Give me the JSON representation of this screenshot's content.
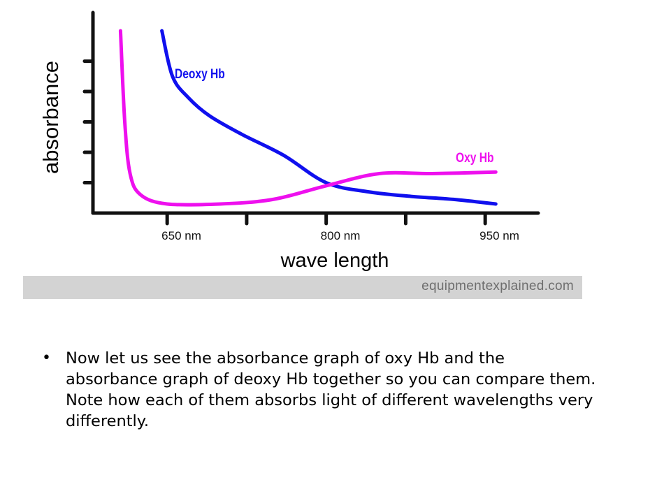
{
  "chart_data": {
    "type": "line",
    "xlabel": "wave length",
    "ylabel": "absorbance",
    "x_ticks": [
      {
        "value": 650,
        "label": "650 nm"
      },
      {
        "value": 725,
        "label": ""
      },
      {
        "value": 800,
        "label": "800 nm"
      },
      {
        "value": 875,
        "label": ""
      },
      {
        "value": 950,
        "label": "950 nm"
      }
    ],
    "y_ticks": [
      1,
      2,
      3,
      4,
      5
    ],
    "xlim": [
      580,
      1000
    ],
    "ylim": [
      0,
      6.6
    ],
    "grid": false,
    "legend": "inline-labels",
    "series": [
      {
        "name": "Deoxy Hb",
        "color": "#1010ee",
        "points": [
          [
            645,
            6.0
          ],
          [
            655,
            4.5
          ],
          [
            670,
            3.8
          ],
          [
            690,
            3.2
          ],
          [
            720,
            2.6
          ],
          [
            760,
            1.9
          ],
          [
            800,
            1.0
          ],
          [
            840,
            0.7
          ],
          [
            880,
            0.55
          ],
          [
            920,
            0.45
          ],
          [
            960,
            0.3
          ]
        ]
      },
      {
        "name": "Oxy Hb",
        "color": "#ee10ee",
        "points": [
          [
            606,
            6.0
          ],
          [
            610,
            3.0
          ],
          [
            615,
            1.3
          ],
          [
            625,
            0.6
          ],
          [
            650,
            0.3
          ],
          [
            700,
            0.3
          ],
          [
            750,
            0.45
          ],
          [
            800,
            0.9
          ],
          [
            850,
            1.3
          ],
          [
            900,
            1.3
          ],
          [
            960,
            1.35
          ]
        ]
      }
    ]
  },
  "credit": "equipmentexplained.com",
  "bullet": {
    "text": "Now let us see the absorbance graph of oxy Hb and the absorbance graph of deoxy Hb together so you can compare them. Note how each of them absorbs light of different wavelengths very differently."
  }
}
